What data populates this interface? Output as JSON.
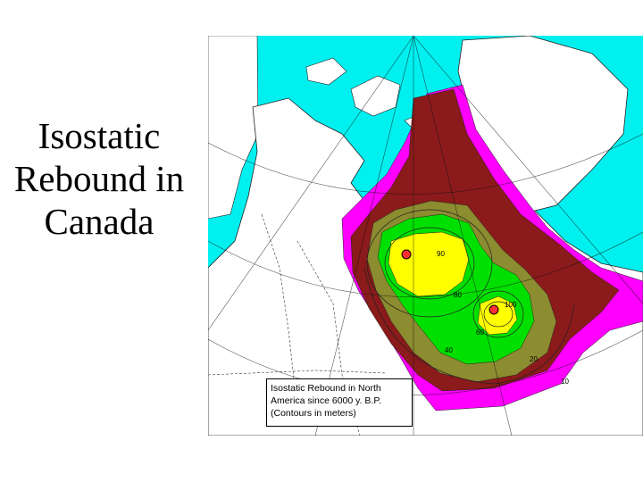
{
  "slide": {
    "title_lines": [
      "Isostatic",
      "Rebound in",
      "Canada"
    ]
  },
  "map": {
    "caption_lines": [
      "Isostatic Rebound in North",
      "America since 6000 y. B.P.",
      "(Contours in meters)"
    ],
    "contour_labels": [
      "90",
      "100",
      "80",
      "60",
      "40",
      "20",
      "10"
    ],
    "colors": {
      "ocean": "#00f0f0",
      "land": "#ffffff",
      "band_outer": "#ff00ff",
      "band_dark": "#8b1a1a",
      "band_olive": "#8c8c30",
      "band_green": "#00e000",
      "band_yellow": "#ffff00",
      "center_marker": "#ff3030"
    }
  }
}
